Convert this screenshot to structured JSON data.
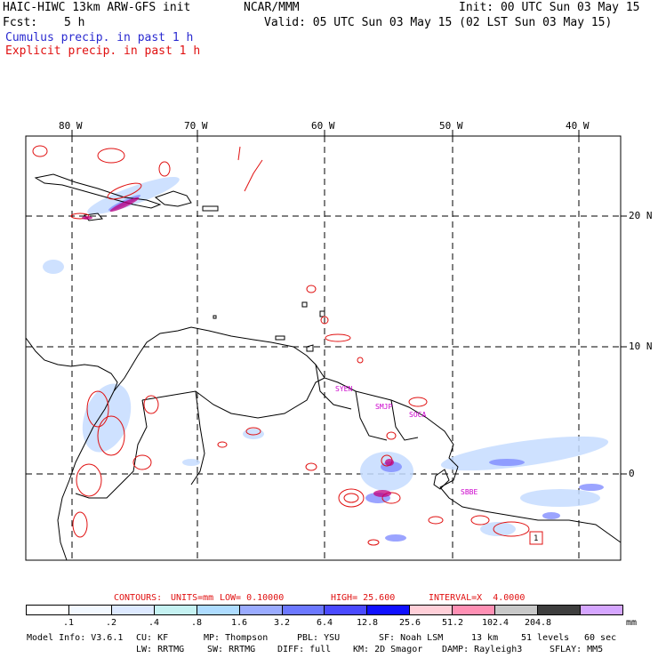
{
  "header": {
    "model_title": "HAIC-HIWC 13km ARW-GFS init",
    "center": "NCAR/MMM",
    "init_time": "Init: 00 UTC Sun 03 May 15",
    "fcst_label": "Fcst:",
    "fcst_value": "5 h",
    "valid_time": "Valid: 05 UTC Sun 03 May 15 (02 LST Sun 03 May 15)",
    "field_1": "Cumulus precip. in past 1 h",
    "field_2": "Explicit precip. in past 1 h",
    "field_1_color": "#2a2ad0",
    "field_2_color": "#e01010"
  },
  "map": {
    "lon_labels": [
      "80 W",
      "70 W",
      "60 W",
      "50 W",
      "40 W"
    ],
    "lat_labels": [
      "20 N",
      "10 N",
      "0"
    ],
    "stations": [
      "SYEN",
      "SMJP",
      "SOCA",
      "SBBE",
      "1"
    ],
    "station_color": "#cc00cc",
    "coast_color": "#000000",
    "grid_style": "dashed"
  },
  "contours": {
    "label": "CONTOURS:",
    "units": "UNITS=mm",
    "low": "LOW= 0.10000",
    "high": "HIGH= 25.600",
    "interval": "INTERVAL=X  4.0000"
  },
  "colorbar": {
    "unit": "mm",
    "colors": [
      "#ffffff",
      "#f2f8ff",
      "#dde9ff",
      "#c5f2f2",
      "#aedcff",
      "#9aabff",
      "#6c78ff",
      "#4a4aff",
      "#1010ff",
      "#ffcfd8",
      "#ff90b4",
      "#c8c8c8",
      "#3e3e3e",
      "#d5a6ff"
    ],
    "levels": [
      ".1",
      ".2",
      ".4",
      ".8",
      "1.6",
      "3.2",
      "6.4",
      "12.8",
      "25.6",
      "51.2",
      "102.4",
      "204.8"
    ]
  },
  "footer": {
    "line1": {
      "model_info": "Model Info: V3.6.1",
      "cu": "CU: KF",
      "mp": "MP: Thompson",
      "pbl": "PBL: YSU",
      "sf": "SF: Noah LSM",
      "res": "13 km",
      "levels": "51 levels",
      "dt": "60 sec"
    },
    "line2": {
      "lw": "LW: RRTMG",
      "sw": "SW: RRTMG",
      "diff": "DIFF: full",
      "km": "KM: 2D Smagor",
      "damp": "DAMP: Rayleigh3",
      "sflay": "SFLAY: MM5"
    }
  }
}
